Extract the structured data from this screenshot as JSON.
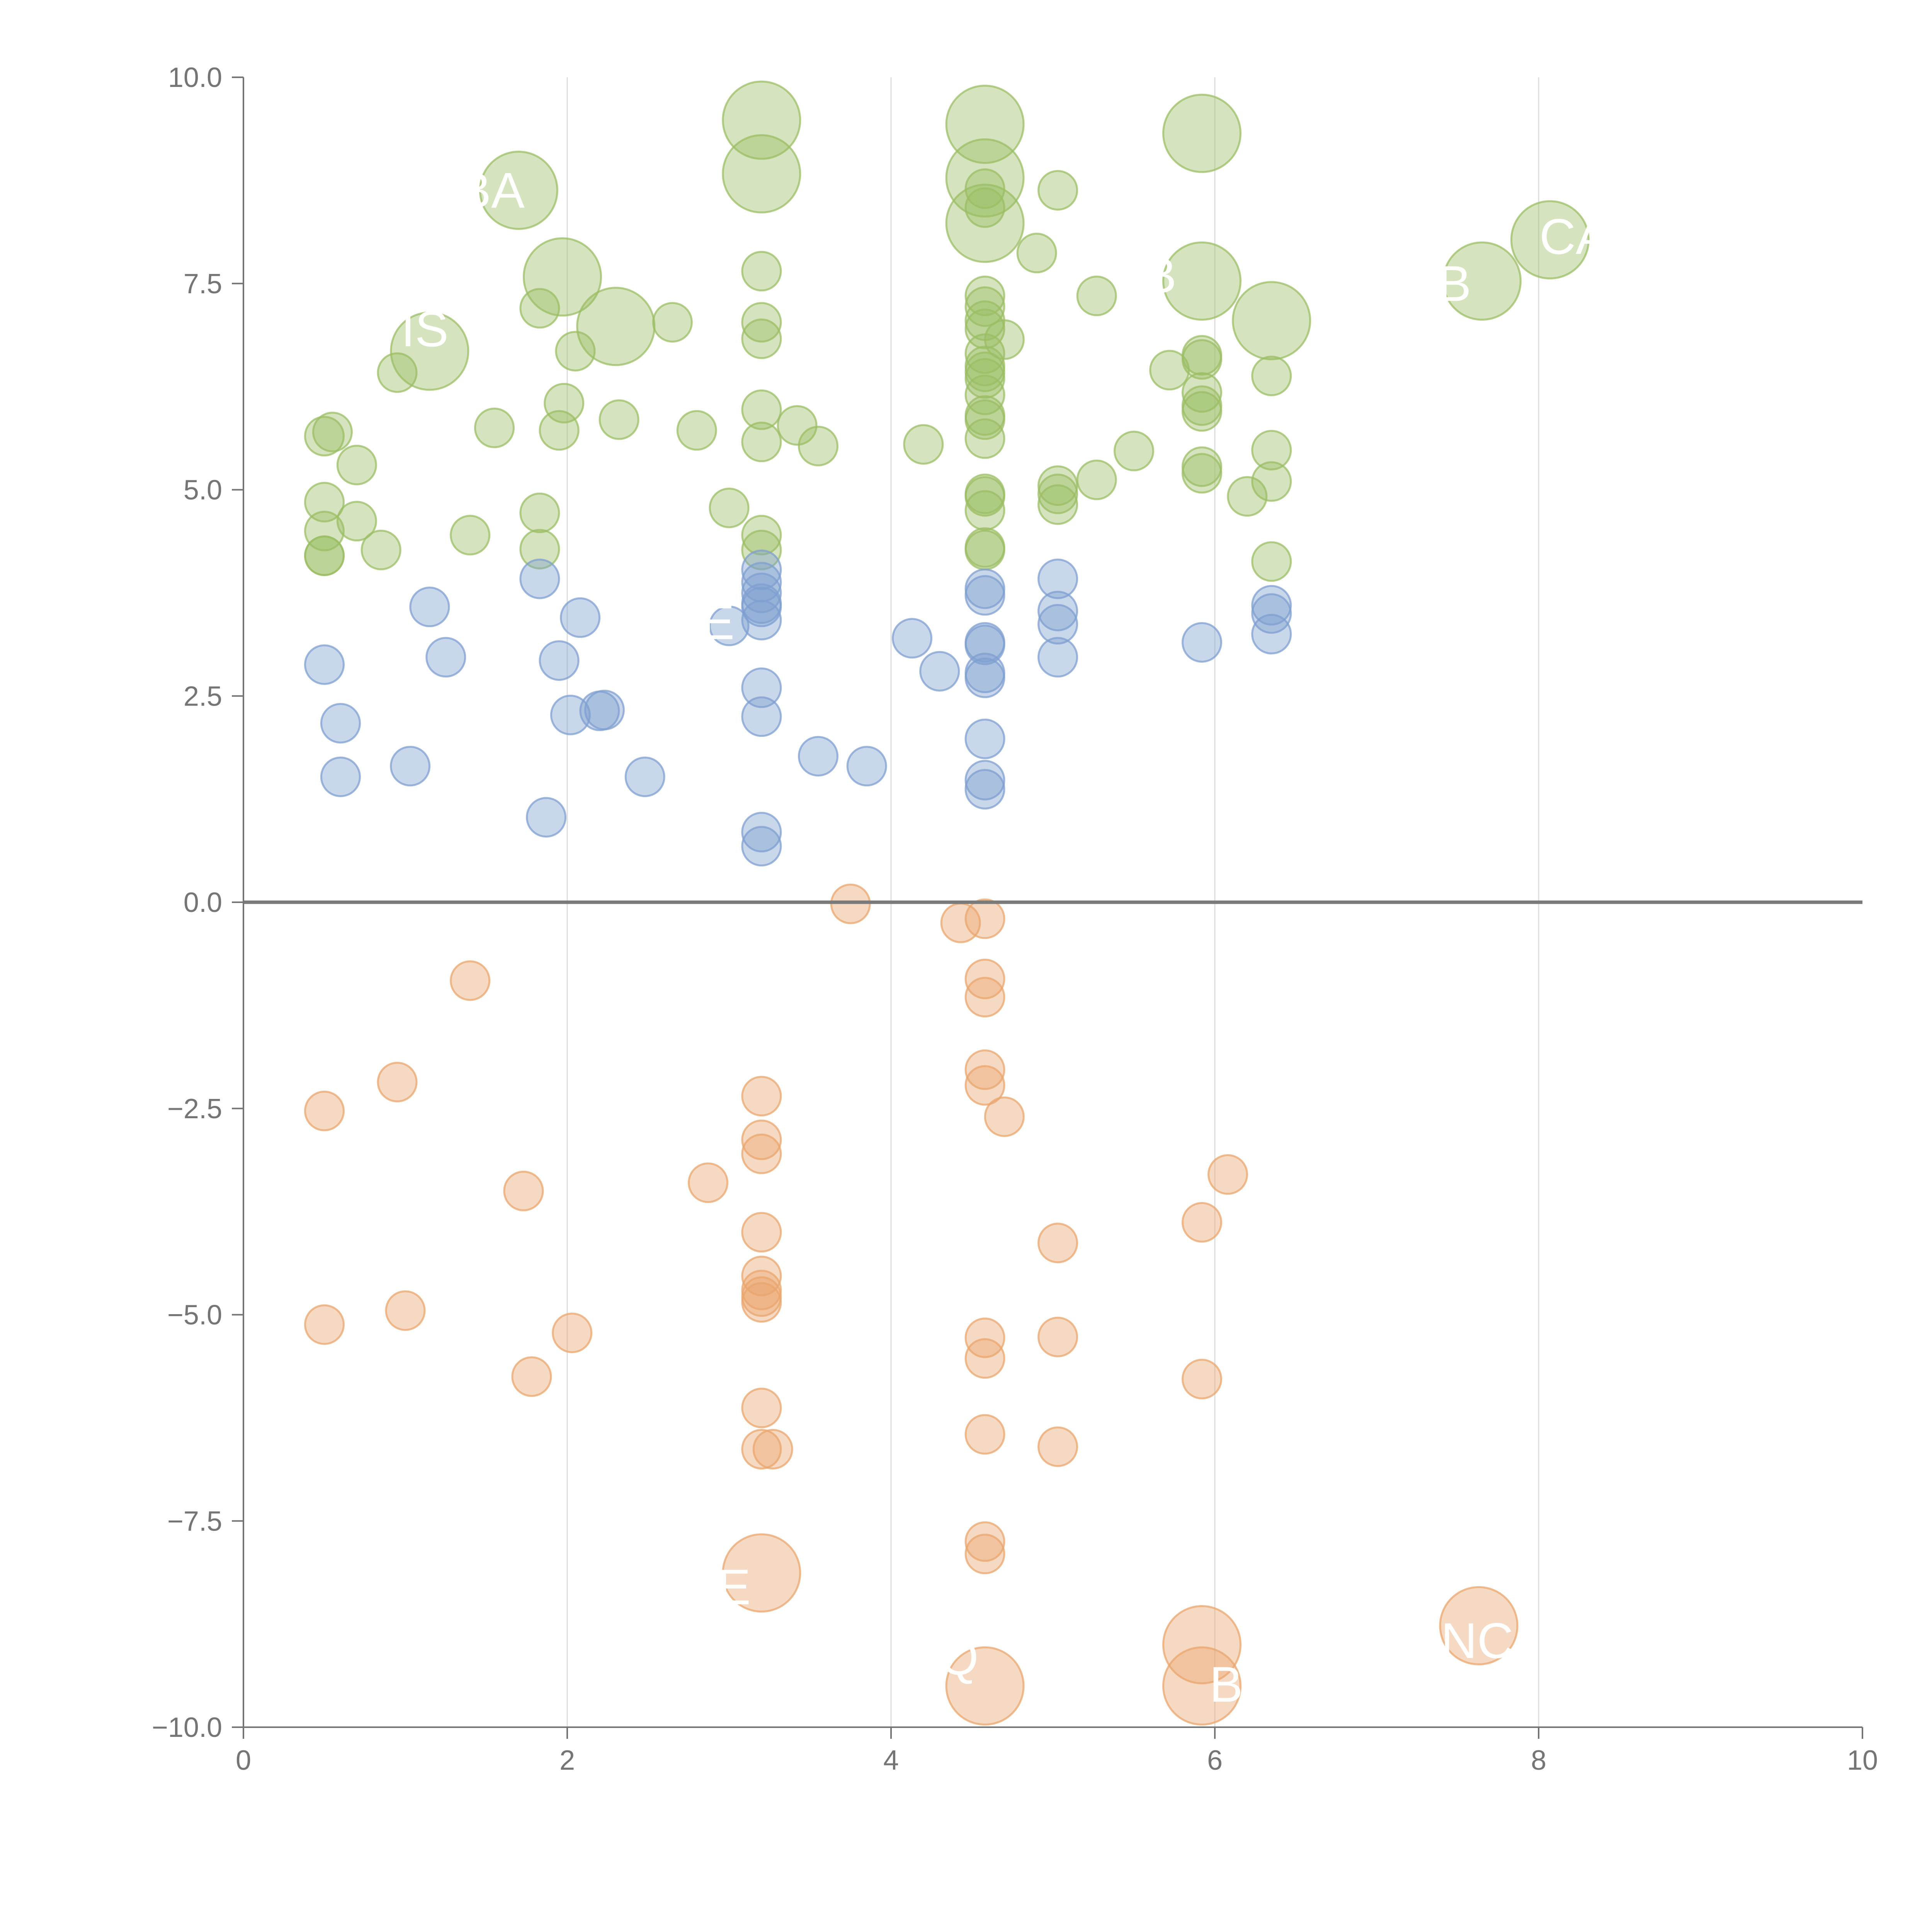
{
  "chart_data": {
    "type": "scatter",
    "title": "",
    "xlabel": "",
    "ylabel": "",
    "xlim": [
      0,
      10
    ],
    "ylim": [
      -10,
      10
    ],
    "x_ticks": [
      0,
      2,
      4,
      6,
      8,
      10
    ],
    "y_ticks": [
      10.0,
      7.5,
      5.0,
      2.5,
      0.0,
      -2.5,
      -5.0,
      -7.5,
      -10.0
    ],
    "x_tick_labels": [
      "0",
      "2",
      "4",
      "6",
      "8",
      "10"
    ],
    "y_tick_labels": [
      "10.0",
      "7.5",
      "5.0",
      "2.5",
      "0.0",
      "−2.5",
      "−5.0",
      "−7.5",
      "−10.0"
    ],
    "grid": "vertical",
    "zero_line": true,
    "legend": "none",
    "series": [
      {
        "color": "#9bbe64",
        "points": [
          [
            0.5,
            5.65,
            1
          ],
          [
            0.55,
            5.7,
            1
          ],
          [
            0.5,
            4.85,
            1
          ],
          [
            0.5,
            4.5,
            1
          ],
          [
            0.5,
            4.2,
            1
          ],
          [
            0.5,
            4.2,
            1
          ],
          [
            0.7,
            5.3,
            1
          ],
          [
            0.7,
            4.62,
            1
          ],
          [
            0.85,
            4.27,
            1
          ],
          [
            0.95,
            6.42,
            1
          ],
          [
            1.15,
            6.68,
            2
          ],
          [
            1.4,
            4.45,
            1
          ],
          [
            1.55,
            5.75,
            1
          ],
          [
            1.7,
            8.63,
            2
          ],
          [
            1.83,
            7.2,
            1
          ],
          [
            1.83,
            4.72,
            1
          ],
          [
            1.83,
            4.28,
            1
          ],
          [
            1.95,
            5.72,
            1
          ],
          [
            1.98,
            6.05,
            1
          ],
          [
            1.97,
            7.58,
            2
          ],
          [
            2.05,
            6.68,
            1
          ],
          [
            2.3,
            6.98,
            2
          ],
          [
            2.32,
            5.85,
            1
          ],
          [
            2.65,
            7.03,
            1
          ],
          [
            2.8,
            5.72,
            1
          ],
          [
            3.0,
            4.78,
            1
          ],
          [
            3.2,
            9.48,
            2
          ],
          [
            3.2,
            8.83,
            2
          ],
          [
            3.2,
            7.65,
            1
          ],
          [
            3.2,
            7.03,
            1
          ],
          [
            3.2,
            6.83,
            1
          ],
          [
            3.2,
            5.97,
            1
          ],
          [
            3.2,
            5.58,
            1
          ],
          [
            3.2,
            4.45,
            1
          ],
          [
            3.2,
            4.27,
            1
          ],
          [
            3.42,
            5.78,
            1
          ],
          [
            3.55,
            5.53,
            1
          ],
          [
            4.2,
            5.55,
            1
          ],
          [
            4.58,
            9.43,
            2
          ],
          [
            4.58,
            8.78,
            2
          ],
          [
            4.58,
            8.23,
            2
          ],
          [
            4.58,
            8.65,
            1
          ],
          [
            4.58,
            8.42,
            1
          ],
          [
            4.58,
            7.35,
            1
          ],
          [
            4.58,
            7.22,
            1
          ],
          [
            4.58,
            7.05,
            1
          ],
          [
            4.58,
            6.95,
            1
          ],
          [
            4.58,
            6.65,
            1
          ],
          [
            4.58,
            6.5,
            1
          ],
          [
            4.58,
            6.43,
            1
          ],
          [
            4.58,
            6.35,
            1
          ],
          [
            4.58,
            6.15,
            1
          ],
          [
            4.58,
            5.9,
            1
          ],
          [
            4.58,
            5.85,
            1
          ],
          [
            4.58,
            5.62,
            1
          ],
          [
            4.58,
            4.95,
            1
          ],
          [
            4.58,
            4.92,
            1
          ],
          [
            4.58,
            4.75,
            1
          ],
          [
            4.58,
            4.3,
            1
          ],
          [
            4.58,
            4.27,
            1
          ],
          [
            4.7,
            6.82,
            1
          ],
          [
            4.9,
            7.87,
            1
          ],
          [
            5.03,
            8.63,
            1
          ],
          [
            5.03,
            5.05,
            1
          ],
          [
            5.03,
            4.95,
            1
          ],
          [
            5.03,
            4.82,
            1
          ],
          [
            5.27,
            7.35,
            1
          ],
          [
            5.27,
            5.12,
            1
          ],
          [
            5.5,
            5.47,
            1
          ],
          [
            5.72,
            6.45,
            1
          ],
          [
            5.92,
            9.32,
            2
          ],
          [
            5.92,
            7.53,
            2
          ],
          [
            5.92,
            6.63,
            1
          ],
          [
            5.92,
            6.58,
            1
          ],
          [
            5.92,
            6.18,
            1
          ],
          [
            5.92,
            6.02,
            1
          ],
          [
            5.92,
            5.95,
            1
          ],
          [
            5.92,
            5.28,
            1
          ],
          [
            5.92,
            5.2,
            1
          ],
          [
            6.2,
            4.92,
            1
          ],
          [
            6.35,
            7.05,
            2
          ],
          [
            6.35,
            6.38,
            1
          ],
          [
            6.35,
            5.48,
            1
          ],
          [
            6.35,
            5.1,
            1
          ],
          [
            6.35,
            4.13,
            1
          ],
          [
            7.65,
            7.53,
            2
          ],
          [
            8.07,
            8.03,
            2
          ]
        ]
      },
      {
        "color": "#7f9fd0",
        "points": [
          [
            0.5,
            2.88,
            1
          ],
          [
            0.6,
            2.17,
            1
          ],
          [
            0.6,
            1.52,
            1
          ],
          [
            1.03,
            1.65,
            1
          ],
          [
            1.15,
            3.58,
            1
          ],
          [
            1.25,
            2.97,
            1
          ],
          [
            1.83,
            3.92,
            1
          ],
          [
            1.87,
            1.03,
            1
          ],
          [
            1.95,
            2.93,
            1
          ],
          [
            2.02,
            2.27,
            1
          ],
          [
            2.08,
            3.45,
            1
          ],
          [
            2.2,
            2.32,
            1
          ],
          [
            2.23,
            2.33,
            1
          ],
          [
            2.48,
            1.52,
            1
          ],
          [
            3.0,
            3.35,
            1
          ],
          [
            3.2,
            4.03,
            1
          ],
          [
            3.2,
            3.88,
            1
          ],
          [
            3.2,
            3.75,
            1
          ],
          [
            3.2,
            3.62,
            1
          ],
          [
            3.2,
            3.58,
            1
          ],
          [
            3.2,
            3.42,
            1
          ],
          [
            3.2,
            2.6,
            1
          ],
          [
            3.2,
            2.25,
            1
          ],
          [
            3.2,
            0.85,
            1
          ],
          [
            3.2,
            0.68,
            1
          ],
          [
            3.55,
            1.77,
            1
          ],
          [
            3.85,
            1.65,
            1
          ],
          [
            4.13,
            3.2,
            1
          ],
          [
            4.3,
            2.8,
            1
          ],
          [
            4.58,
            3.8,
            1
          ],
          [
            4.58,
            3.72,
            1
          ],
          [
            4.58,
            3.15,
            1
          ],
          [
            4.58,
            3.12,
            1
          ],
          [
            4.58,
            2.78,
            1
          ],
          [
            4.58,
            2.72,
            1
          ],
          [
            4.58,
            1.98,
            1
          ],
          [
            4.58,
            1.48,
            1
          ],
          [
            4.58,
            1.37,
            1
          ],
          [
            5.03,
            3.92,
            1
          ],
          [
            5.03,
            3.53,
            1
          ],
          [
            5.03,
            3.37,
            1
          ],
          [
            5.03,
            2.97,
            1
          ],
          [
            5.92,
            3.15,
            1
          ],
          [
            6.35,
            3.6,
            1
          ],
          [
            6.35,
            3.5,
            1
          ],
          [
            6.35,
            3.25,
            1
          ]
        ]
      },
      {
        "color": "#e9a56e",
        "points": [
          [
            0.5,
            -2.53,
            1
          ],
          [
            0.5,
            -5.12,
            1
          ],
          [
            0.95,
            -2.18,
            1
          ],
          [
            1.0,
            -4.95,
            1
          ],
          [
            1.4,
            -0.95,
            1
          ],
          [
            1.73,
            -3.5,
            1
          ],
          [
            1.78,
            -5.75,
            1
          ],
          [
            2.03,
            -5.22,
            1
          ],
          [
            2.87,
            -3.4,
            1
          ],
          [
            3.2,
            -2.35,
            1
          ],
          [
            3.2,
            -2.88,
            1
          ],
          [
            3.2,
            -3.05,
            1
          ],
          [
            3.2,
            -4.0,
            1
          ],
          [
            3.2,
            -4.53,
            1
          ],
          [
            3.2,
            -4.7,
            1
          ],
          [
            3.2,
            -4.78,
            1
          ],
          [
            3.2,
            -4.85,
            1
          ],
          [
            3.2,
            -6.13,
            1
          ],
          [
            3.2,
            -6.63,
            1
          ],
          [
            3.27,
            -6.63,
            1
          ],
          [
            3.2,
            -8.13,
            2
          ],
          [
            3.75,
            -0.02,
            1
          ],
          [
            4.43,
            -0.25,
            1
          ],
          [
            4.58,
            -0.2,
            1
          ],
          [
            4.58,
            -0.93,
            1
          ],
          [
            4.58,
            -1.15,
            1
          ],
          [
            4.58,
            -2.03,
            1
          ],
          [
            4.58,
            -2.22,
            1
          ],
          [
            4.58,
            -5.28,
            1
          ],
          [
            4.58,
            -5.53,
            1
          ],
          [
            4.58,
            -6.45,
            1
          ],
          [
            4.58,
            -7.75,
            1
          ],
          [
            4.58,
            -7.9,
            1
          ],
          [
            4.58,
            -9.5,
            2
          ],
          [
            4.7,
            -2.6,
            1
          ],
          [
            5.03,
            -4.13,
            1
          ],
          [
            5.03,
            -5.27,
            1
          ],
          [
            5.03,
            -6.6,
            1
          ],
          [
            5.92,
            -3.88,
            1
          ],
          [
            5.92,
            -5.78,
            1
          ],
          [
            5.92,
            -9.0,
            2
          ],
          [
            5.92,
            -9.5,
            2
          ],
          [
            6.08,
            -3.3,
            1
          ],
          [
            7.63,
            -8.77,
            2
          ]
        ]
      }
    ],
    "annotations": [
      {
        "text": "BA",
        "x": 1.53,
        "y": 8.63
      },
      {
        "text": "IS",
        "x": 1.12,
        "y": 6.95
      },
      {
        "text": "B",
        "x": 7.48,
        "y": 7.5
      },
      {
        "text": "CA",
        "x": 8.22,
        "y": 8.07
      },
      {
        "text": "B",
        "x": 5.66,
        "y": 7.6
      },
      {
        "text": "E",
        "x": 2.93,
        "y": 3.4
      },
      {
        "text": "E",
        "x": 3.03,
        "y": -8.3
      },
      {
        "text": "B",
        "x": 6.07,
        "y": -9.48
      },
      {
        "text": "Q",
        "x": 4.42,
        "y": -9.15
      },
      {
        "text": "NC",
        "x": 7.62,
        "y": -8.95
      }
    ]
  }
}
